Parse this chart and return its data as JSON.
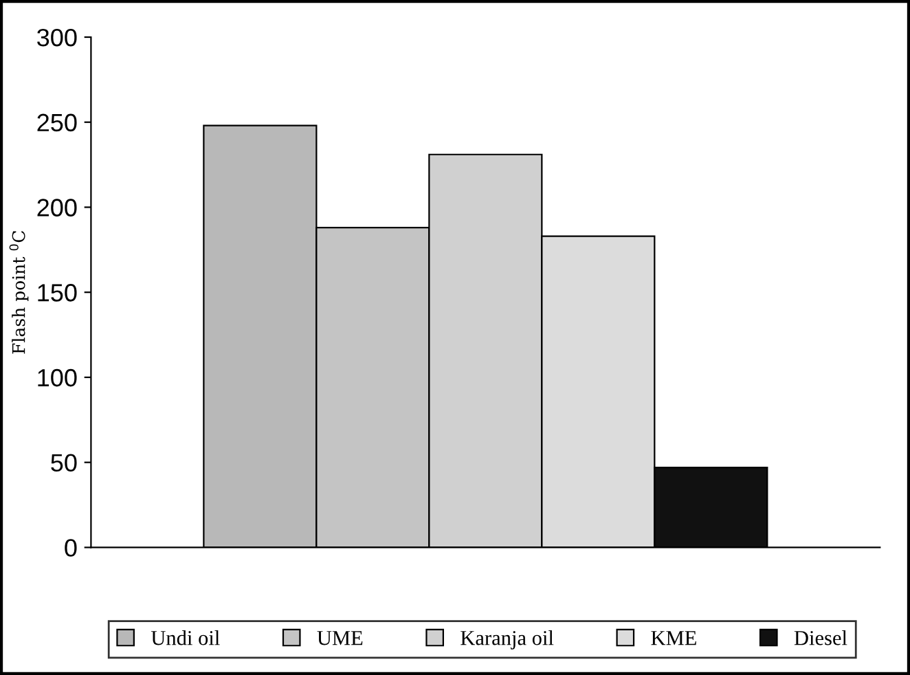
{
  "chart_data": {
    "type": "bar",
    "ylabel": "Flash point $^{0}$C",
    "categories": [
      null,
      null,
      null,
      null,
      null,
      null,
      null
    ],
    "series": [
      {
        "name": "Undi oil",
        "color": "#b8b8b8",
        "values": [
          null,
          248,
          null,
          null,
          null,
          null,
          null
        ]
      },
      {
        "name": "UME",
        "color": "#c4c4c4",
        "values": [
          null,
          null,
          188,
          null,
          null,
          null,
          null
        ]
      },
      {
        "name": "Karanja oil",
        "color": "#d0d0d0",
        "values": [
          null,
          null,
          null,
          231,
          null,
          null,
          null
        ]
      },
      {
        "name": "KME",
        "color": "#dcdcdc",
        "values": [
          null,
          null,
          null,
          null,
          183,
          null,
          null
        ]
      },
      {
        "name": "Diesel",
        "color": "#111111",
        "values": [
          null,
          null,
          null,
          null,
          null,
          47,
          null
        ]
      }
    ],
    "ylim": [
      0,
      300
    ],
    "yticks": [
      0,
      50,
      100,
      150,
      200,
      250,
      300
    ],
    "grid": false,
    "legend": "bottom"
  }
}
